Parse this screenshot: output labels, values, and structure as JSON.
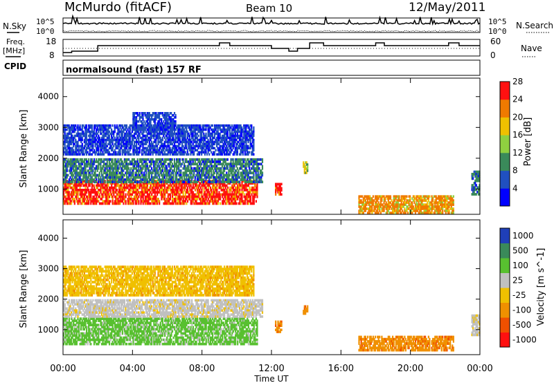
{
  "header": {
    "station": "McMurdo (fitACF)",
    "beam": "Beam 10",
    "date": "12/May/2011"
  },
  "noise_panel": {
    "left_label": "N.Sky",
    "left_ticks": [
      "10^5",
      "10^0"
    ],
    "right_label": "N.Search",
    "right_ticks": [
      "10^5",
      "10^0"
    ]
  },
  "freq_panel": {
    "left_label_1": "Freq.",
    "left_label_2": "[MHz]",
    "left_ticks": [
      "18",
      "8"
    ],
    "right_label": "Nave",
    "right_ticks": [
      "60",
      "0"
    ]
  },
  "cpid": {
    "label": "CPID",
    "program": "normalsound (fast) 157 RF"
  },
  "chart_data": [
    {
      "type": "heatmap",
      "name": "power",
      "ylabel": "Slant Range [km]",
      "yticks": [
        "1000",
        "2000",
        "3000",
        "4000"
      ],
      "ylim": [
        180,
        4600
      ],
      "xlim": [
        0,
        24
      ],
      "colorbar": {
        "label": "Power [dB]",
        "ticks": [
          "4",
          "8",
          "12",
          "16",
          "20",
          "24",
          "28"
        ],
        "colors": [
          "#0000ff",
          "#2050c0",
          "#3a8a5a",
          "#8fd040",
          "#f0c000",
          "#f07a00",
          "#ff1010"
        ],
        "range": [
          0,
          30
        ]
      },
      "regions": [
        {
          "x": [
            0,
            11.2
          ],
          "y": [
            500,
            1300
          ],
          "level": 28
        },
        {
          "x": [
            2.5,
            3.5
          ],
          "y": [
            1300,
            1500
          ],
          "level": 16
        },
        {
          "x": [
            0,
            11.5
          ],
          "y": [
            1200,
            2000
          ],
          "level": 12
        },
        {
          "x": [
            0,
            11
          ],
          "y": [
            2100,
            2700
          ],
          "level": 8
        },
        {
          "x": [
            0,
            11
          ],
          "y": [
            2700,
            3100
          ],
          "level": 8
        },
        {
          "x": [
            4,
            6.5
          ],
          "y": [
            2900,
            3500
          ],
          "level": 8
        },
        {
          "x": [
            12.2,
            12.6
          ],
          "y": [
            800,
            1200
          ],
          "level": 28
        },
        {
          "x": [
            13.8,
            14.1
          ],
          "y": [
            1500,
            1900
          ],
          "level": 20
        },
        {
          "x": [
            17,
            22.5
          ],
          "y": [
            200,
            800
          ],
          "level": 24
        },
        {
          "x": [
            23.5,
            24
          ],
          "y": [
            800,
            1600
          ],
          "level": 12
        }
      ]
    },
    {
      "type": "heatmap",
      "name": "velocity",
      "ylabel": "Slant Range [km]",
      "yticks": [
        "1000",
        "2000",
        "3000",
        "4000"
      ],
      "ylim": [
        180,
        4600
      ],
      "xlim": [
        0,
        24
      ],
      "colorbar": {
        "label": "Velocity [m s^-1]",
        "ticks": [
          "1000",
          "500",
          "100",
          "25",
          "-25",
          "-100",
          "-500",
          "-1000"
        ],
        "colors": [
          "#1f3fb8",
          "#3a8a5a",
          "#58c030",
          "#c0c0c0",
          "#f0c000",
          "#f09000",
          "#f05000",
          "#ff1010"
        ],
        "range": [
          -1000,
          1000
        ]
      },
      "regions": [
        {
          "x": [
            0,
            11.2
          ],
          "y": [
            500,
            1400
          ],
          "level": 100
        },
        {
          "x": [
            0,
            11.5
          ],
          "y": [
            1400,
            2000
          ],
          "level": 25
        },
        {
          "x": [
            0,
            11
          ],
          "y": [
            2100,
            3100
          ],
          "level": -25
        },
        {
          "x": [
            12.2,
            12.6
          ],
          "y": [
            900,
            1300
          ],
          "level": -100
        },
        {
          "x": [
            13.8,
            14.1
          ],
          "y": [
            1500,
            1800
          ],
          "level": -100
        },
        {
          "x": [
            17,
            22.5
          ],
          "y": [
            300,
            800
          ],
          "level": -100
        },
        {
          "x": [
            23.5,
            24
          ],
          "y": [
            800,
            1500
          ],
          "level": 25
        }
      ]
    }
  ],
  "time_axis": {
    "label": "Time UT",
    "ticks": [
      "00:00",
      "04:00",
      "08:00",
      "12:00",
      "16:00",
      "20:00",
      "00:00"
    ]
  }
}
